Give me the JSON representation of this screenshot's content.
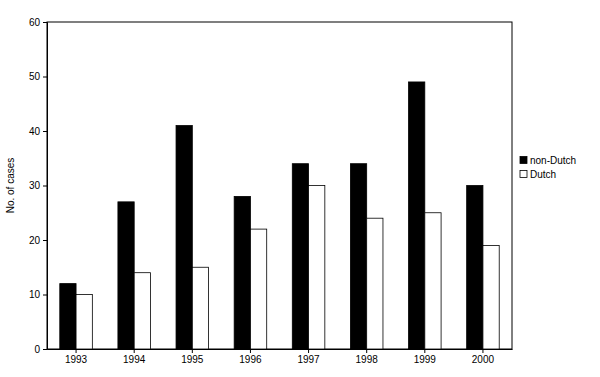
{
  "chart_data": {
    "type": "bar",
    "y_label": "No. of cases",
    "categories": [
      "1993",
      "1994",
      "1995",
      "1996",
      "1997",
      "1998",
      "1999",
      "2000"
    ],
    "series": [
      {
        "name": "non-Dutch",
        "color": "#000000",
        "values": [
          12,
          27,
          41,
          28,
          34,
          34,
          49,
          30
        ]
      },
      {
        "name": "Dutch",
        "color": "#ffffff",
        "values": [
          10,
          14,
          15,
          22,
          30,
          24,
          25,
          19
        ]
      }
    ],
    "ylim": [
      0,
      60
    ],
    "yticks": [
      0,
      10,
      20,
      30,
      40,
      50,
      60
    ],
    "grid": false,
    "legend": "right"
  }
}
